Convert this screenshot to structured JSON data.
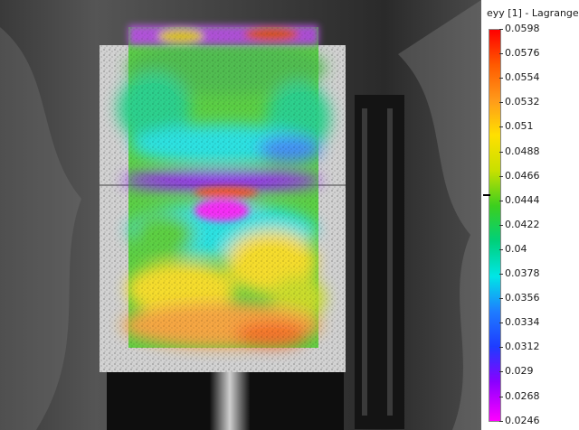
{
  "legend": {
    "title": "eyy [1] - Lagrange",
    "ticks": [
      "0.0598",
      "0.0576",
      "0.0554",
      "0.0532",
      "0.051",
      "0.0488",
      "0.0466",
      "0.0444",
      "0.0422",
      "0.04",
      "0.0378",
      "0.0356",
      "0.0334",
      "0.0312",
      "0.029",
      "0.0268",
      "0.0246"
    ],
    "colors": {
      "max": "#ff0000",
      "high": "#ff9a1a",
      "mid_high": "#ffe000",
      "mid": "#3ccf1e",
      "mid_low": "#00e6e6",
      "low": "#1e3cff",
      "min": "#ff00ff"
    }
  },
  "viewport": {
    "image_description_icon": "strain-overlay-image"
  }
}
